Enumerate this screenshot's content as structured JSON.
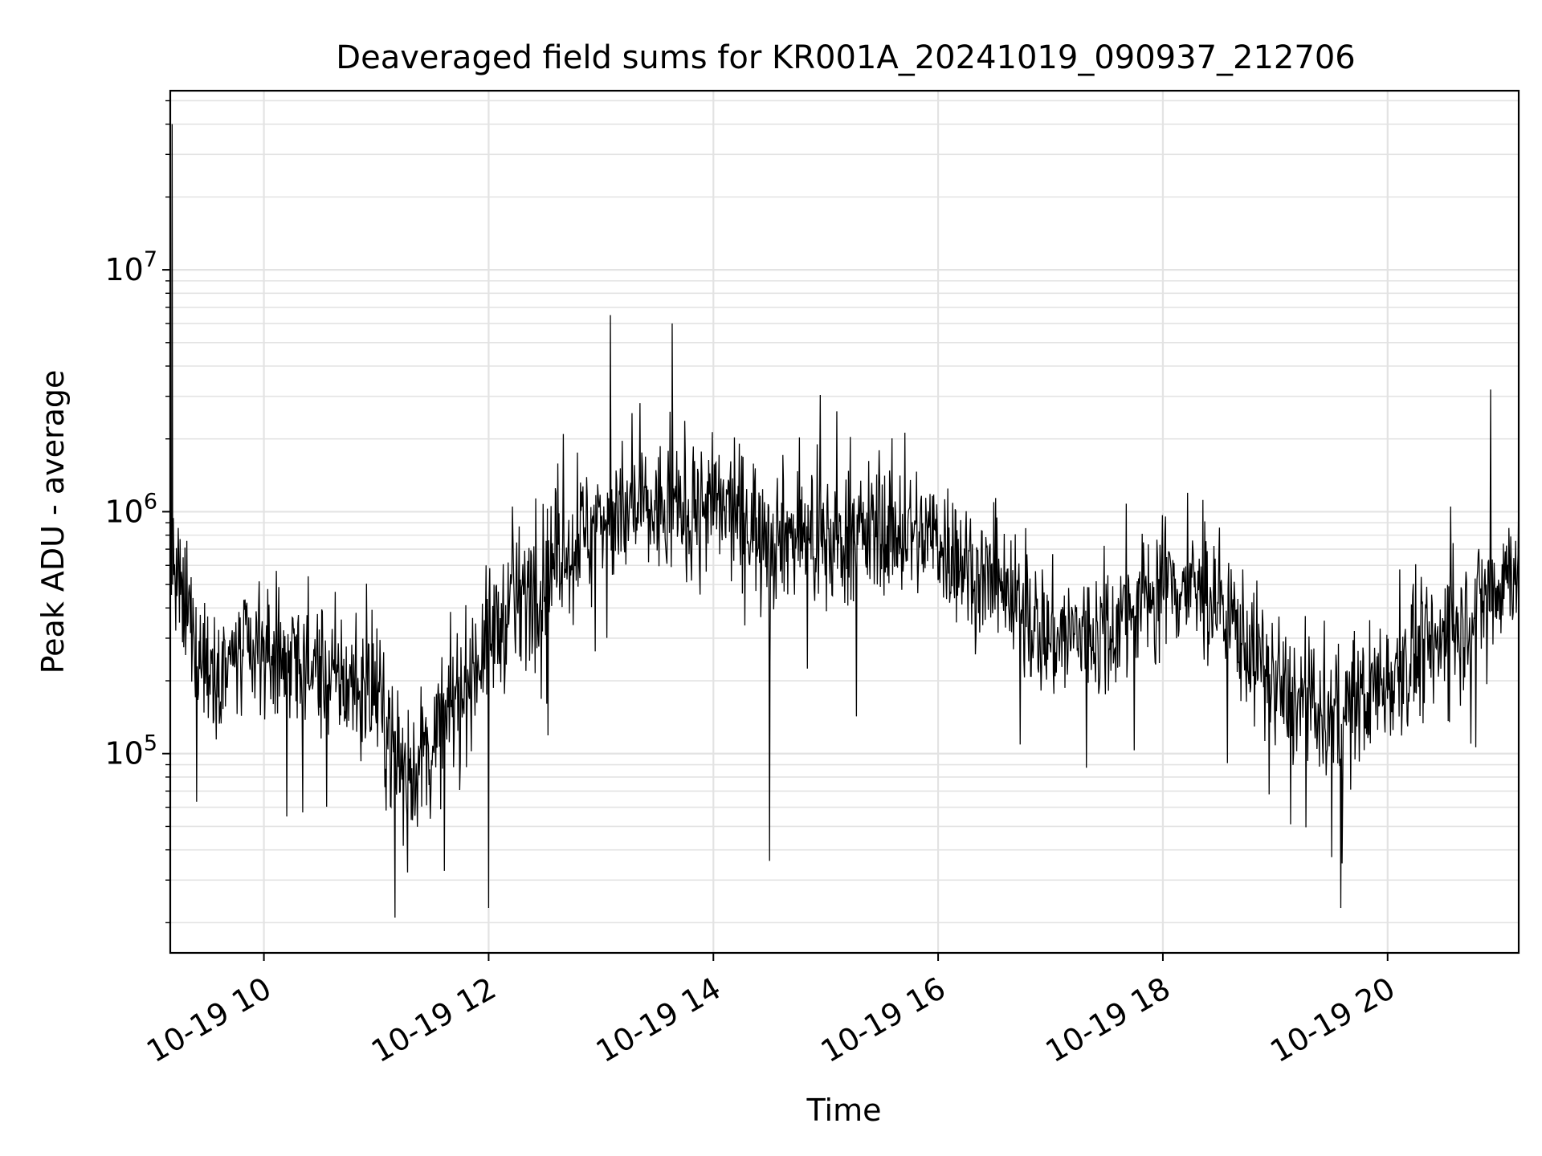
{
  "chart_data": {
    "type": "line",
    "title": "Deaveraged field sums for KR001A_20241019_090937_212706",
    "xlabel": "Time",
    "ylabel": "Peak ADU - average",
    "xscale": "time",
    "yscale": "log",
    "xlim": [
      "10-19 09:10",
      "10-19 21:10"
    ],
    "ylim": [
      15000,
      55000000
    ],
    "x_ticks": [
      "10-19 10",
      "10-19 12",
      "10-19 14",
      "10-19 16",
      "10-19 18",
      "10-19 20"
    ],
    "y_ticks": [
      {
        "base": "10",
        "exp": "5",
        "value": 100000
      },
      {
        "base": "10",
        "exp": "6",
        "value": 1000000
      },
      {
        "base": "10",
        "exp": "7",
        "value": 10000000
      }
    ],
    "grid": true,
    "series": [
      {
        "color": "#000000",
        "x": [
          "10-19 09:10",
          "10-19 09:30",
          "10-19 10:00",
          "10-19 10:30",
          "10-19 11:00",
          "10-19 11:15",
          "10-19 11:30",
          "10-19 12:00",
          "10-19 12:30",
          "10-19 13:00",
          "10-19 13:30",
          "10-19 14:00",
          "10-19 14:30",
          "10-19 15:00",
          "10-19 15:30",
          "10-19 16:00",
          "10-19 16:30",
          "10-19 17:00",
          "10-19 17:30",
          "10-19 18:00",
          "10-19 18:30",
          "10-19 19:00",
          "10-19 19:30",
          "10-19 20:00",
          "10-19 20:30",
          "10-19 21:00",
          "10-19 21:10"
        ],
        "values": [
          550000,
          230000,
          260000,
          220000,
          170000,
          80000,
          110000,
          300000,
          580000,
          950000,
          1000000,
          1050000,
          850000,
          750000,
          850000,
          780000,
          480000,
          300000,
          320000,
          520000,
          430000,
          190000,
          130000,
          210000,
          300000,
          520000,
          650000
        ],
        "peaks": [
          {
            "x": "10-19 09:11",
            "value": 40000000
          },
          {
            "x": "10-19 13:05",
            "value": 6500000
          },
          {
            "x": "10-19 13:38",
            "value": 6000000
          },
          {
            "x": "10-19 20:55",
            "value": 3200000
          }
        ],
        "troughs": [
          {
            "x": "10-19 11:10",
            "value": 21000
          },
          {
            "x": "10-19 12:00",
            "value": 23000
          },
          {
            "x": "10-19 14:30",
            "value": 36000
          },
          {
            "x": "10-19 19:35",
            "value": 23000
          }
        ]
      }
    ]
  }
}
